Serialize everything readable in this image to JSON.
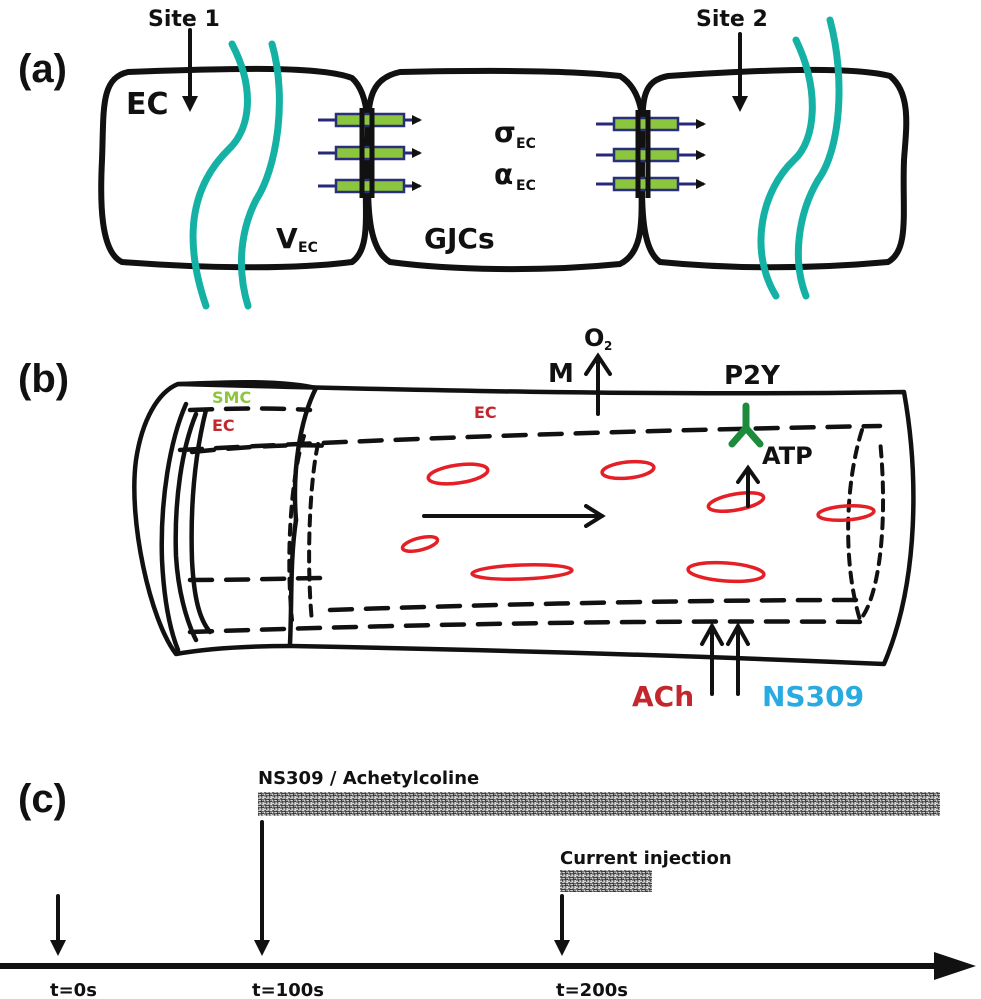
{
  "panel_a": {
    "tag": "(a)",
    "site1": "Site 1",
    "site2": "Site 2",
    "ec": "EC",
    "sigma": "σ",
    "alpha": "α",
    "ec_sub": "EC",
    "v": "V",
    "v_sub": "EC",
    "gjcs": "GJCs"
  },
  "panel_b": {
    "tag": "(b)",
    "smc": "SMC",
    "ec_left": "EC",
    "ec_mid": "EC",
    "m": "M",
    "o2": "O",
    "o2_sub": "2",
    "p2y": "P2Y",
    "atp": "ATP",
    "ach": "ACh",
    "ns309": "NS309"
  },
  "panel_c": {
    "tag": "(c)",
    "bar1_label": "NS309 / Achetylcoline",
    "bar2_label": "Current injection",
    "t0": "t=0s",
    "t100": "t=100s",
    "t200": "t=200s"
  },
  "colors": {
    "teal": "#14b1a4",
    "green_channel": "#8cc63f",
    "navy": "#27287a",
    "red_cell": "#e41f26",
    "ach_red": "#c1272d",
    "ns309_blue": "#29abe2",
    "smc_green": "#8cc63f",
    "p2y_green": "#1e8a3c"
  }
}
